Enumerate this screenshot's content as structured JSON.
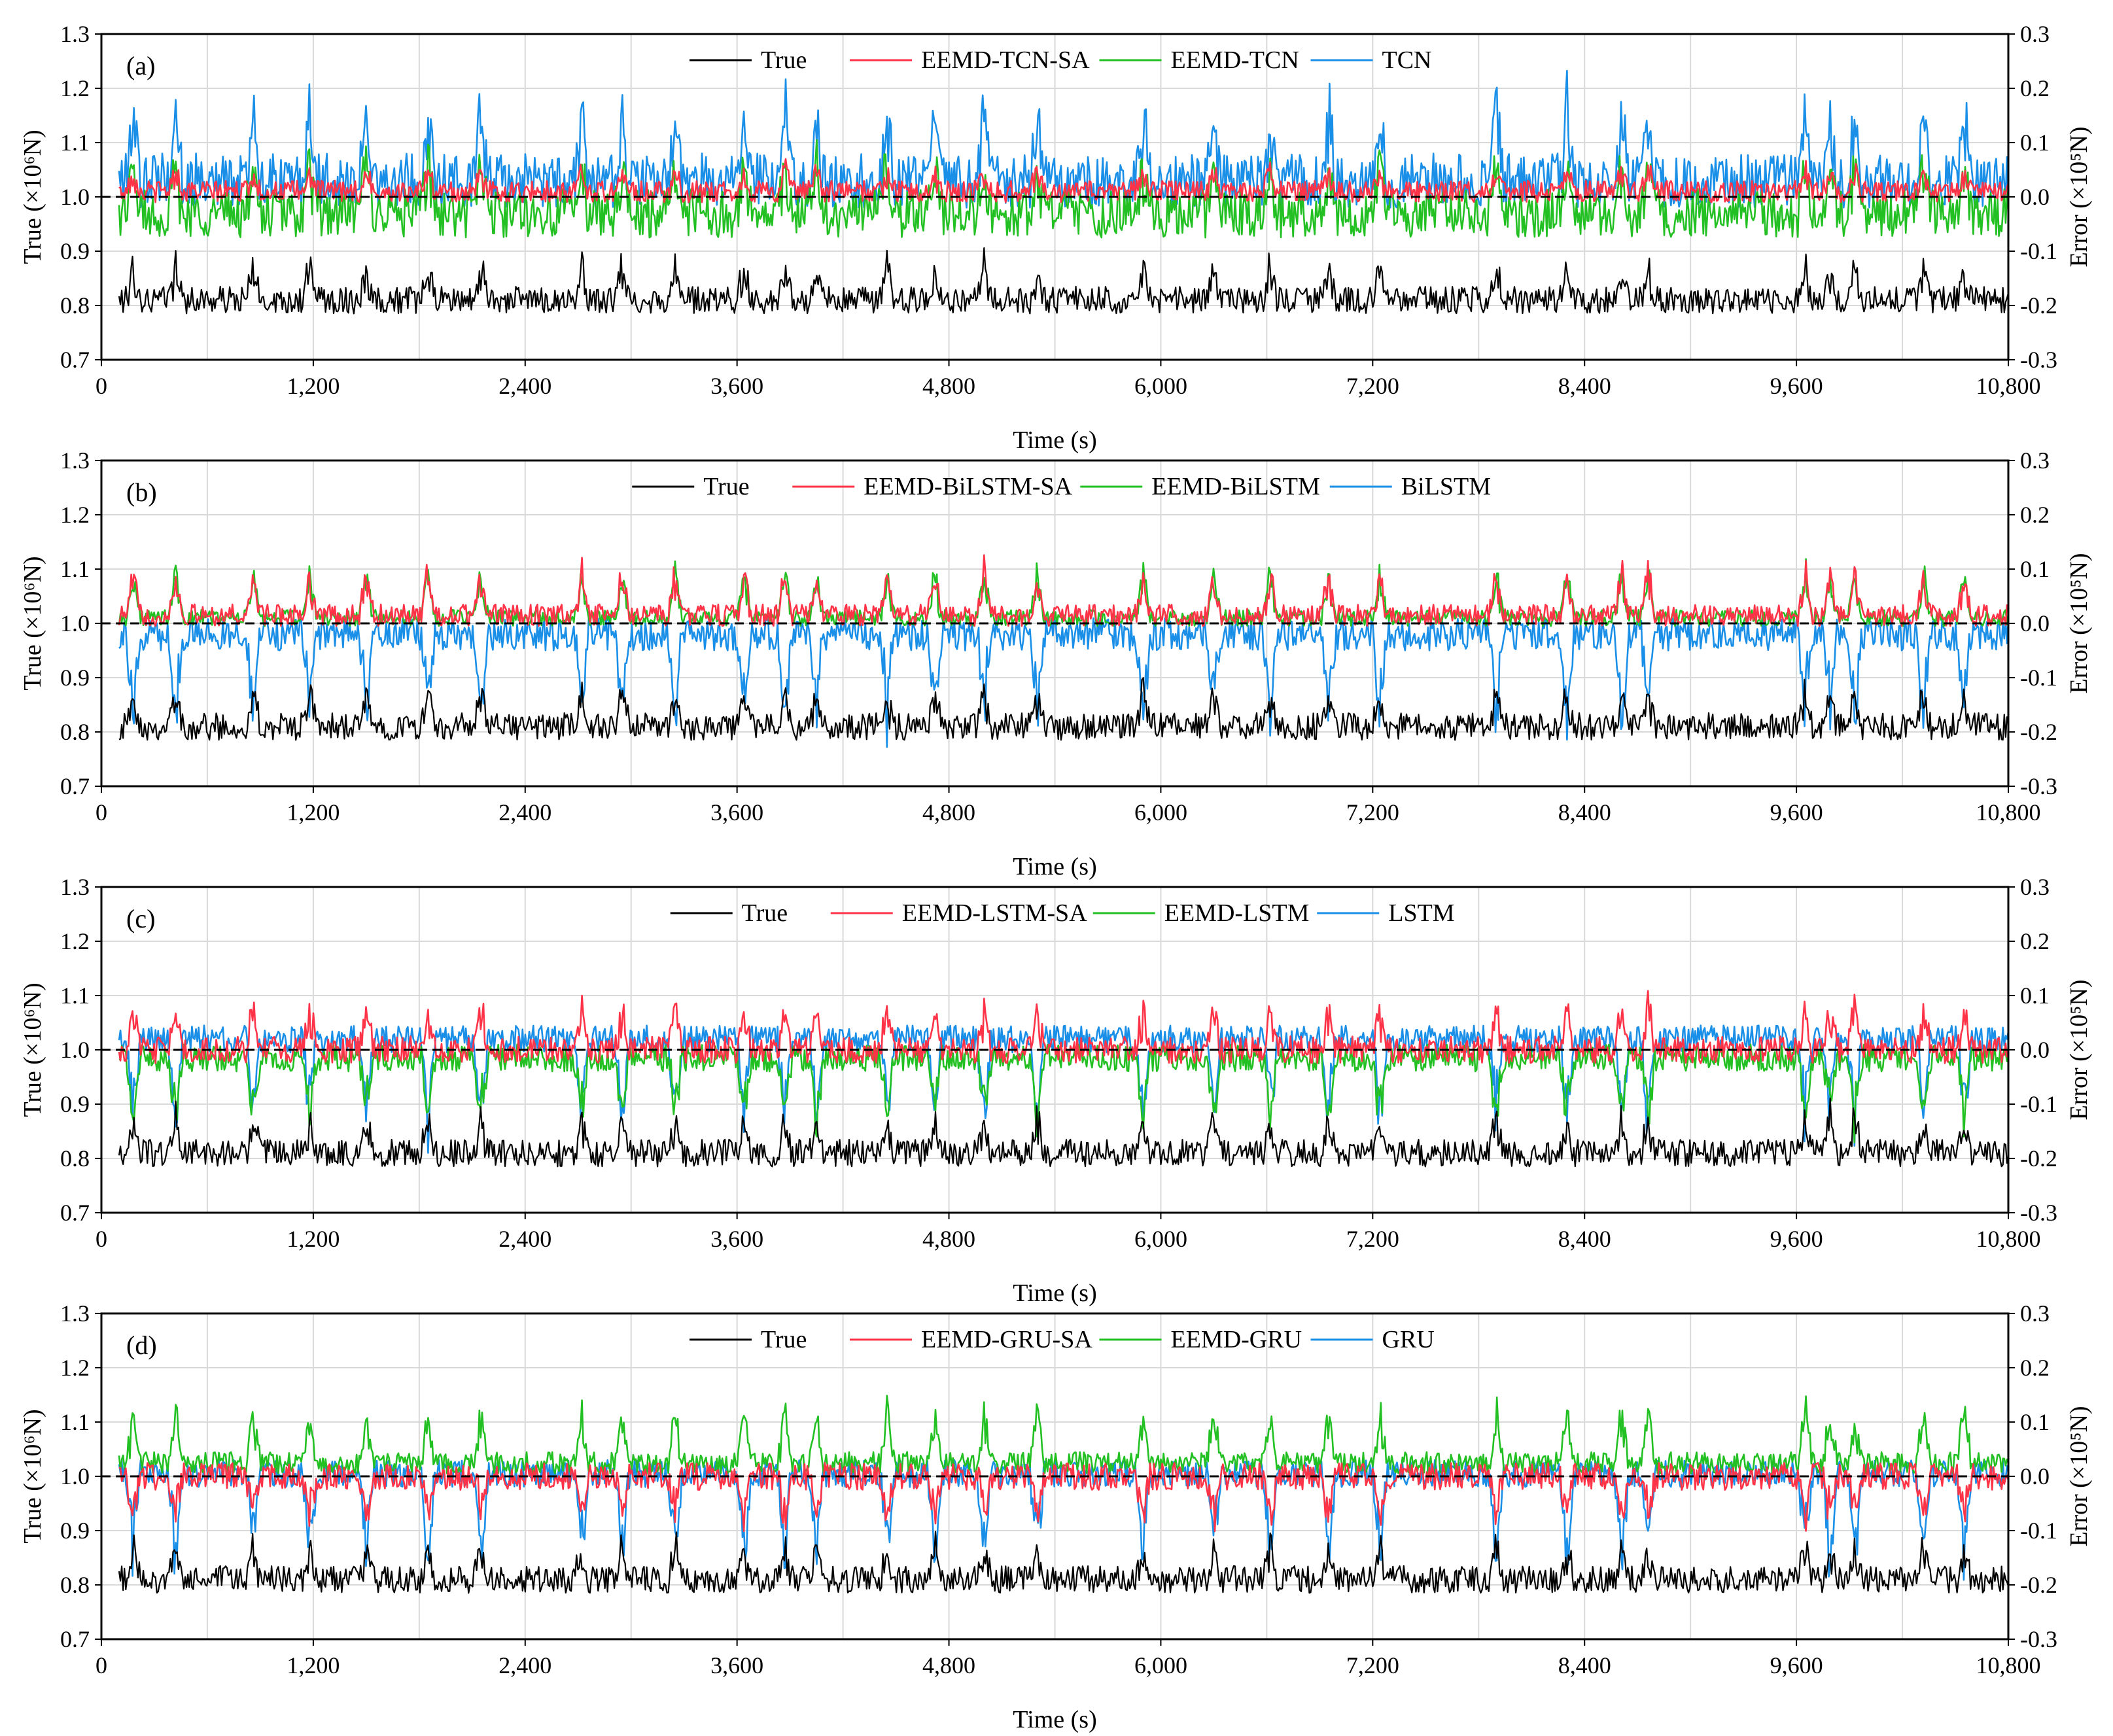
{
  "colors": {
    "True": "#000000",
    "hybrid_sa": "#ff3347",
    "hybrid": "#22c022",
    "single": "#1a8fe8",
    "grid": "#d9d9d9",
    "frame": "#000000"
  },
  "chart_data": [
    {
      "type": "line",
      "panel_label": "(a)",
      "xlabel": "Time (s)",
      "ylabel_left": "True (×10⁶N)",
      "ylabel_right": "Error (×10⁵N)",
      "xlim": [
        0,
        10800
      ],
      "ylim_left": [
        0.7,
        1.3
      ],
      "ylim_right": [
        -0.3,
        0.3
      ],
      "x_ticks": [
        0,
        1200,
        2400,
        3600,
        4800,
        6000,
        7200,
        8400,
        9600,
        10800
      ],
      "x_tick_labels": [
        "0",
        "1,200",
        "2,400",
        "3,600",
        "4,800",
        "6,000",
        "7,200",
        "8,400",
        "9,600",
        "10,800"
      ],
      "y_left_ticks": [
        "0.7",
        "0.8",
        "0.9",
        "1.0",
        "1.1",
        "1.2",
        "1.3"
      ],
      "y_right_ticks": [
        "-0.3",
        "-0.2",
        "-0.1",
        "0.0",
        "0.1",
        "0.2",
        "0.3"
      ],
      "grid": true,
      "legend_position": "top-center",
      "series": [
        {
          "name": "True",
          "axis": "left",
          "base": 0.81,
          "spread": 0.025,
          "peak": 0.08,
          "mean": 0.81
        },
        {
          "name": "EEMD-TCN-SA",
          "axis": "right",
          "base": 0.01,
          "spread": 0.02,
          "peak": 0.05,
          "mean": 0.01
        },
        {
          "name": "EEMD-TCN",
          "axis": "right",
          "base": -0.03,
          "spread": 0.045,
          "peak": 0.12,
          "mean": -0.03
        },
        {
          "name": "TCN",
          "axis": "right",
          "base": 0.03,
          "spread": 0.05,
          "peak": 0.17,
          "mean": 0.03
        }
      ]
    },
    {
      "type": "line",
      "panel_label": "(b)",
      "xlabel": "Time (s)",
      "ylabel_left": "True (×10⁶N)",
      "ylabel_right": "Error (×10⁵N)",
      "xlim": [
        0,
        10800
      ],
      "ylim_left": [
        0.7,
        1.3
      ],
      "ylim_right": [
        -0.3,
        0.3
      ],
      "x_ticks": [
        0,
        1200,
        2400,
        3600,
        4800,
        6000,
        7200,
        8400,
        9600,
        10800
      ],
      "x_tick_labels": [
        "0",
        "1,200",
        "2,400",
        "3,600",
        "4,800",
        "6,000",
        "7,200",
        "8,400",
        "9,600",
        "10,800"
      ],
      "y_left_ticks": [
        "0.7",
        "0.8",
        "0.9",
        "1.0",
        "1.1",
        "1.2",
        "1.3"
      ],
      "y_right_ticks": [
        "-0.3",
        "-0.2",
        "-0.1",
        "0.0",
        "0.1",
        "0.2",
        "0.3"
      ],
      "grid": true,
      "legend_position": "top-center",
      "series": [
        {
          "name": "True",
          "axis": "left",
          "base": 0.81,
          "spread": 0.025,
          "peak": 0.08,
          "mean": 0.81
        },
        {
          "name": "EEMD-BiLSTM-SA",
          "axis": "right",
          "base": 0.015,
          "spread": 0.02,
          "peak": 0.1,
          "mean": 0.015
        },
        {
          "name": "EEMD-BiLSTM",
          "axis": "right",
          "base": 0.01,
          "spread": 0.015,
          "peak": 0.11,
          "mean": 0.01
        },
        {
          "name": "BiLSTM",
          "axis": "right",
          "base": -0.02,
          "spread": 0.03,
          "peak": -0.2,
          "mean": -0.02
        }
      ]
    },
    {
      "type": "line",
      "panel_label": "(c)",
      "xlabel": "Time (s)",
      "ylabel_left": "True (×10⁶N)",
      "ylabel_right": "Error (×10⁵N)",
      "xlim": [
        0,
        10800
      ],
      "ylim_left": [
        0.7,
        1.3
      ],
      "ylim_right": [
        -0.3,
        0.3
      ],
      "x_ticks": [
        0,
        1200,
        2400,
        3600,
        4800,
        6000,
        7200,
        8400,
        9600,
        10800
      ],
      "x_tick_labels": [
        "0",
        "1,200",
        "2,400",
        "3,600",
        "4,800",
        "6,000",
        "7,200",
        "8,400",
        "9,600",
        "10,800"
      ],
      "y_left_ticks": [
        "0.7",
        "0.8",
        "0.9",
        "1.0",
        "1.1",
        "1.2",
        "1.3"
      ],
      "y_right_ticks": [
        "-0.3",
        "-0.2",
        "-0.1",
        "0.0",
        "0.1",
        "0.2",
        "0.3"
      ],
      "grid": true,
      "legend_position": "top-center",
      "series": [
        {
          "name": "True",
          "axis": "left",
          "base": 0.81,
          "spread": 0.025,
          "peak": 0.08,
          "mean": 0.81
        },
        {
          "name": "EEMD-LSTM-SA",
          "axis": "right",
          "base": 0.0,
          "spread": 0.025,
          "peak": 0.1,
          "mean": 0.0
        },
        {
          "name": "EEMD-LSTM",
          "axis": "right",
          "base": -0.015,
          "spread": 0.025,
          "peak": -0.15,
          "mean": -0.015
        },
        {
          "name": "LSTM",
          "axis": "right",
          "base": 0.02,
          "spread": 0.025,
          "peak": -0.2,
          "mean": 0.02
        }
      ]
    },
    {
      "type": "line",
      "panel_label": "(d)",
      "xlabel": "Time (s)",
      "ylabel_left": "True (×10⁶N)",
      "ylabel_right": "Error (×10⁵N)",
      "xlim": [
        0,
        10800
      ],
      "ylim_left": [
        0.7,
        1.3
      ],
      "ylim_right": [
        -0.3,
        0.3
      ],
      "x_ticks": [
        0,
        1200,
        2400,
        3600,
        4800,
        6000,
        7200,
        8400,
        9600,
        10800
      ],
      "x_tick_labels": [
        "0",
        "1,200",
        "2,400",
        "3,600",
        "4,800",
        "6,000",
        "7,200",
        "8,400",
        "9,600",
        "10,800"
      ],
      "y_left_ticks": [
        "0.7",
        "0.8",
        "0.9",
        "1.0",
        "1.1",
        "1.2",
        "1.3"
      ],
      "y_right_ticks": [
        "-0.3",
        "-0.2",
        "-0.1",
        "0.0",
        "0.1",
        "0.2",
        "0.3"
      ],
      "grid": true,
      "legend_position": "top-center",
      "series": [
        {
          "name": "True",
          "axis": "left",
          "base": 0.81,
          "spread": 0.025,
          "peak": 0.08,
          "mean": 0.81
        },
        {
          "name": "EEMD-GRU-SA",
          "axis": "right",
          "base": 0.0,
          "spread": 0.025,
          "peak": -0.1,
          "mean": 0.0
        },
        {
          "name": "EEMD-GRU",
          "axis": "right",
          "base": 0.025,
          "spread": 0.02,
          "peak": 0.12,
          "mean": 0.025
        },
        {
          "name": "GRU",
          "axis": "right",
          "base": 0.005,
          "spread": 0.025,
          "peak": -0.2,
          "mean": 0.005
        }
      ]
    }
  ]
}
